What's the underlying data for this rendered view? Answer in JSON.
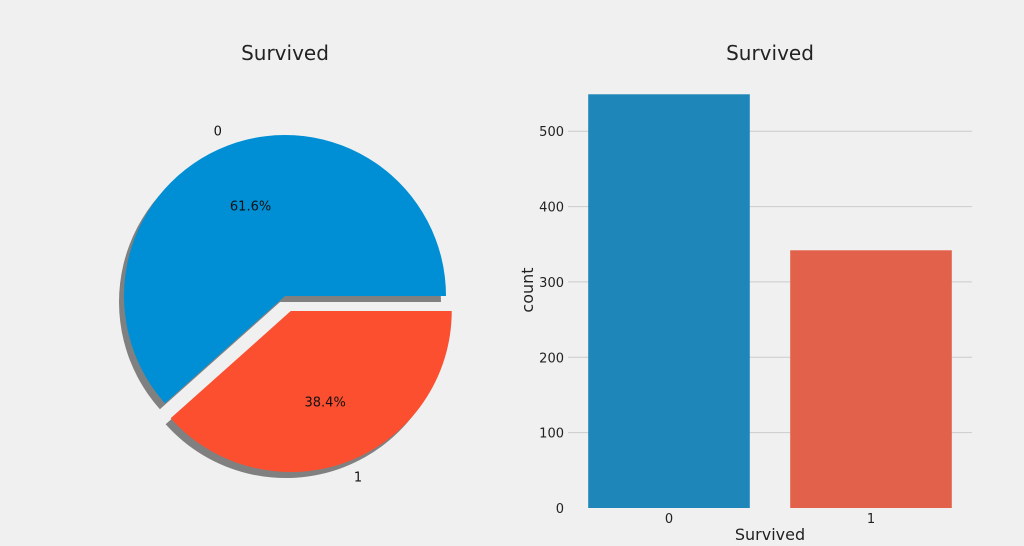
{
  "chart_data": [
    {
      "type": "pie",
      "title": "Survived",
      "labels": [
        "0",
        "1"
      ],
      "values": [
        61.6,
        38.4
      ],
      "value_labels": [
        "61.6%",
        "38.4%"
      ],
      "explode": [
        0,
        0.1
      ],
      "shadow": true,
      "colors": [
        "#008fd5",
        "#fc4f30"
      ]
    },
    {
      "type": "bar",
      "title": "Survived",
      "xlabel": "Survived",
      "ylabel": "count",
      "categories": [
        "0",
        "1"
      ],
      "values": [
        549,
        342
      ],
      "ylim": [
        0,
        560
      ],
      "yticks": [
        "0",
        "100",
        "200",
        "300",
        "400",
        "500"
      ],
      "grid": true,
      "colors": [
        "#1f86b9",
        "#e1614a"
      ]
    }
  ]
}
